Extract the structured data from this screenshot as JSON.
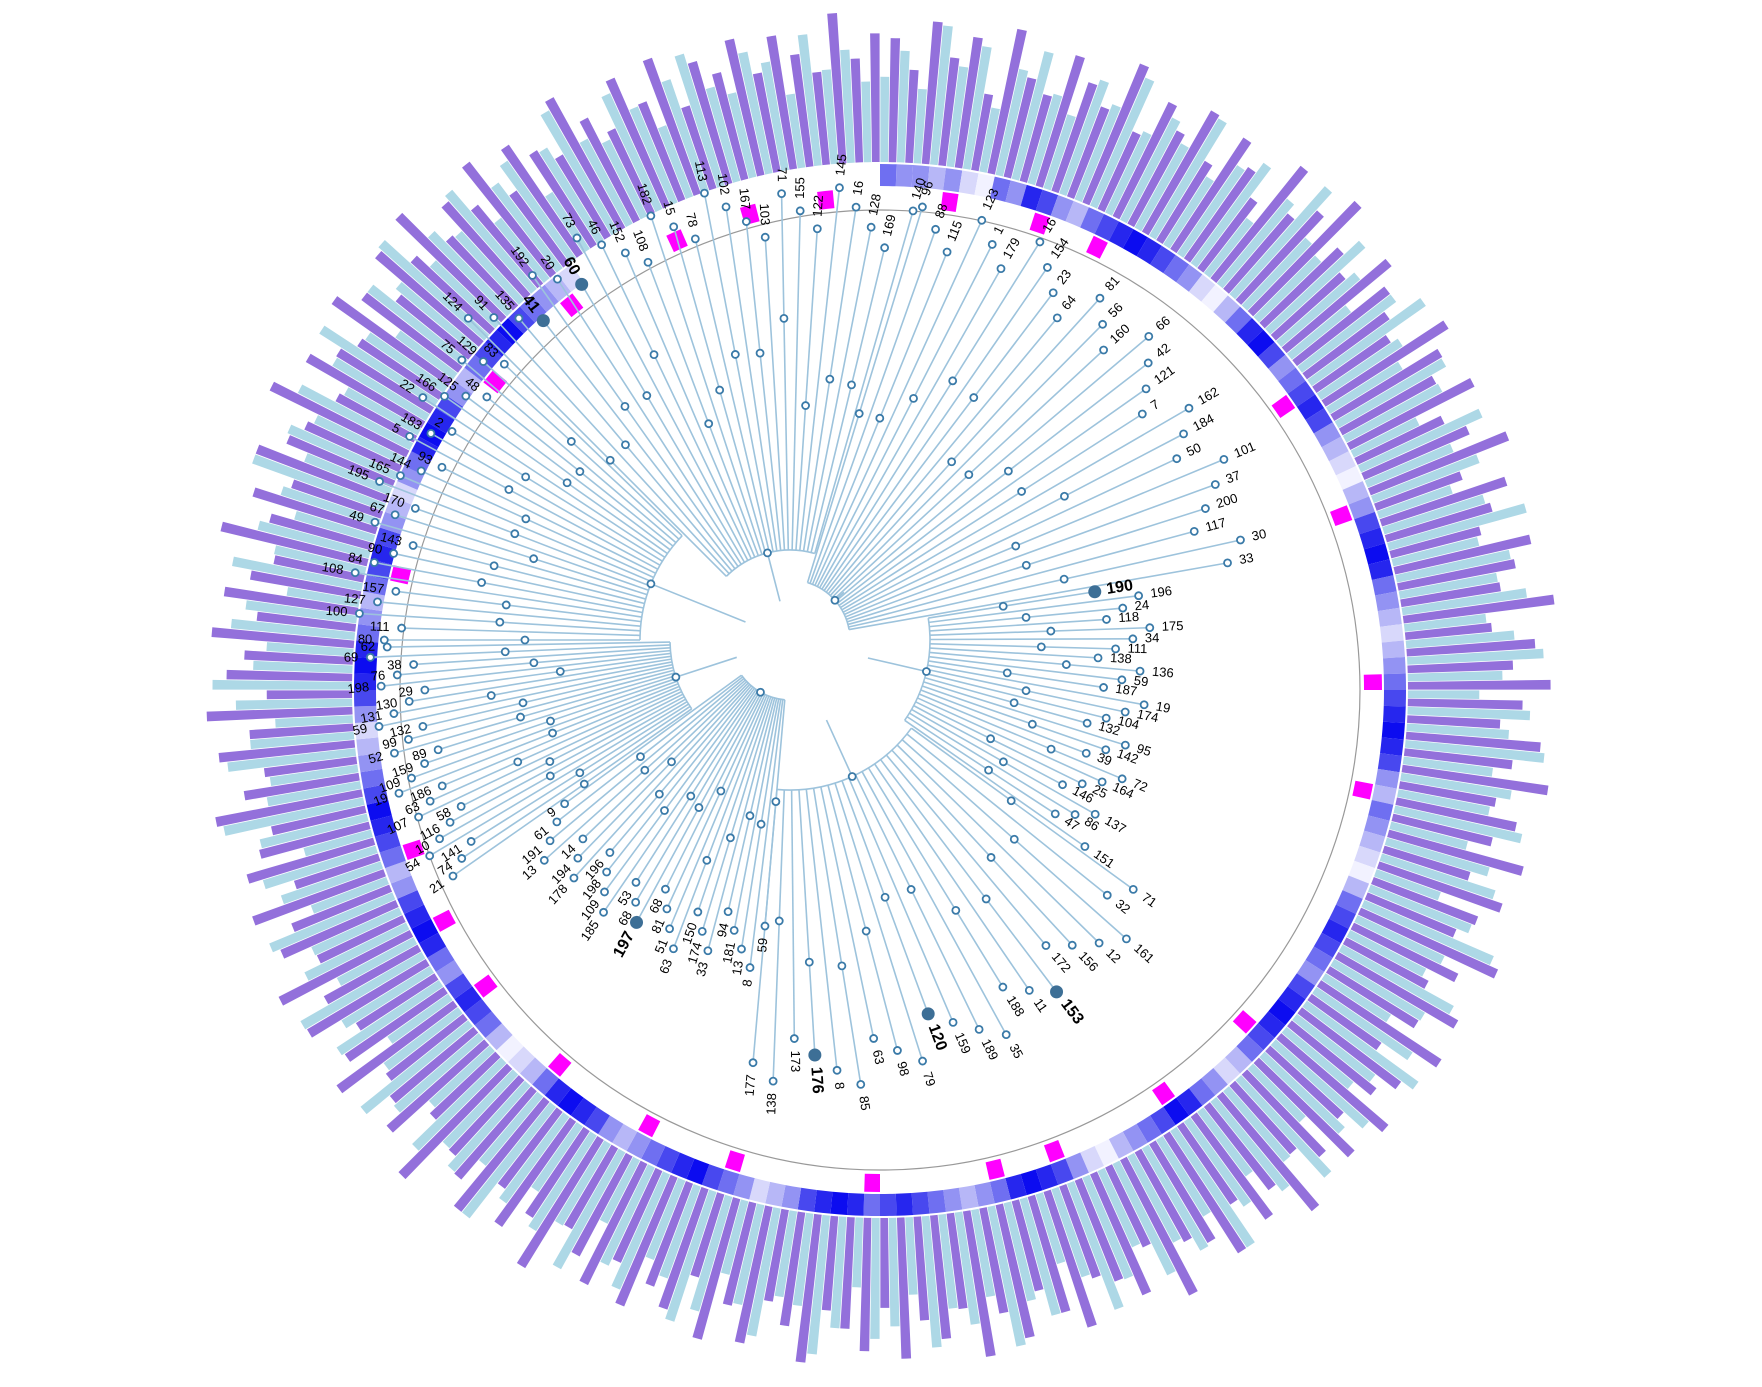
{
  "tree": {
    "branch_color": "#9dc3dc",
    "node_stroke_color": "#3a7aa8",
    "highlight_node_color": "#3d6f96",
    "leaves": [
      "124",
      "91",
      "135",
      "41",
      "192",
      "20",
      "60",
      "73",
      "46",
      "152",
      "108",
      "182",
      "15",
      "78",
      "113",
      "102",
      "167",
      "103",
      "71",
      "155",
      "122",
      "145",
      "16",
      "128",
      "169",
      "140",
      "80",
      "111",
      "100",
      "127",
      "157",
      "108",
      "84",
      "90",
      "143",
      "49",
      "67",
      "170",
      "195",
      "165",
      "144",
      "93",
      "5",
      "183",
      "2",
      "22",
      "166",
      "125",
      "48",
      "75",
      "129",
      "83",
      "21",
      "74",
      "141",
      "54",
      "10",
      "116",
      "58",
      "107",
      "63",
      "186",
      "19",
      "109",
      "159",
      "89",
      "52",
      "99",
      "132",
      "59",
      "131",
      "130",
      "29",
      "198",
      "76",
      "38",
      "69",
      "62",
      "59",
      "8",
      "13",
      "181",
      "94",
      "33",
      "174",
      "150",
      "63",
      "51",
      "81",
      "68",
      "197",
      "68",
      "53",
      "185",
      "109",
      "198",
      "196",
      "178",
      "194",
      "14",
      "13",
      "191",
      "61",
      "9",
      "96",
      "88",
      "115",
      "123",
      "1",
      "179",
      "16",
      "154",
      "23",
      "64",
      "81",
      "56",
      "160",
      "66",
      "42",
      "121",
      "7",
      "162",
      "184",
      "50",
      "101",
      "37",
      "200",
      "117",
      "30",
      "33",
      "190",
      "196",
      "24",
      "118",
      "175",
      "34",
      "111",
      "138",
      "136",
      "59",
      "187",
      "19",
      "174",
      "104",
      "132",
      "95",
      "142",
      "39",
      "72",
      "164",
      "25",
      "146",
      "137",
      "86",
      "47",
      "151",
      "71",
      "32",
      "161",
      "12",
      "156",
      "172",
      "153",
      "11",
      "188",
      "35",
      "189",
      "159",
      "120",
      "79",
      "98",
      "63",
      "85",
      "8",
      "176",
      "173",
      "138",
      "177"
    ],
    "bold_leaves": [
      "91",
      "41",
      "60",
      "103",
      "170",
      "83",
      "52",
      "197",
      "178",
      "66",
      "42",
      "190",
      "175",
      "138",
      "104",
      "132",
      "137",
      "86",
      "153",
      "189",
      "120",
      "176"
    ]
  },
  "rings": {
    "highlight_color": "#ff00ff",
    "heat_palette": [
      "#f2f2ff",
      "#d8d8fb",
      "#b7b7f7",
      "#9393f3",
      "#6f6ff1",
      "#4848ef",
      "#2626ee",
      "#0c0cf0"
    ],
    "bar_colors": [
      "#add8e6",
      "#9370db"
    ],
    "heat_levels": [
      4,
      3,
      3,
      2,
      3,
      1,
      0,
      4,
      3,
      6,
      5,
      3,
      2,
      4,
      5,
      6,
      7,
      6,
      5,
      4,
      3,
      1,
      0,
      2,
      4,
      6,
      7,
      5,
      3,
      4,
      5,
      6,
      5,
      3,
      2,
      1,
      0,
      2,
      3,
      5,
      6,
      7,
      6,
      4,
      3,
      2,
      1,
      2,
      3,
      4,
      5,
      6,
      7,
      6,
      5,
      3,
      2,
      4,
      3,
      2,
      1,
      0,
      2,
      4,
      5,
      6,
      5,
      4,
      3,
      5,
      6,
      7,
      6,
      5,
      4,
      2,
      1,
      3,
      4,
      6,
      7,
      5,
      4,
      3,
      2,
      0,
      1,
      3,
      5,
      6,
      7,
      6,
      4,
      3,
      2,
      3,
      4,
      5,
      6,
      5,
      4,
      6,
      7,
      6,
      5,
      3,
      2,
      1,
      3,
      4,
      5,
      7,
      6,
      5,
      4,
      3,
      2,
      3,
      5,
      6,
      7,
      6,
      4,
      2,
      1,
      0,
      2,
      4,
      5,
      6,
      5,
      3,
      4,
      6,
      7,
      6,
      5,
      3,
      2,
      4,
      5,
      6,
      7,
      5,
      4,
      3,
      2,
      1,
      3,
      5,
      6,
      7,
      6,
      4,
      3,
      2,
      4,
      5,
      6,
      5,
      3,
      2,
      1,
      3,
      4,
      6,
      7,
      6,
      5,
      3,
      2,
      4,
      5,
      6,
      7,
      5,
      4,
      3,
      2,
      1
    ],
    "highlight_positions": [
      4,
      10,
      14,
      30,
      38,
      49,
      56,
      73,
      80,
      88,
      92,
      100,
      109,
      115,
      122,
      129,
      134,
      139,
      157,
      171,
      178,
      186,
      191,
      196
    ],
    "bar_lengths_a": [
      0.55,
      0.72,
      0.48,
      0.9,
      0.65,
      0.8,
      0.42,
      0.7,
      0.85,
      0.6,
      0.5,
      0.78,
      0.66,
      0.9,
      0.58,
      0.74,
      0.62,
      0.88,
      0.52,
      0.69,
      0.8,
      0.45,
      0.71,
      0.93,
      0.6,
      0.56,
      0.83,
      0.67,
      0.49,
      0.76,
      0.9,
      0.63,
      0.55,
      0.8,
      0.7,
      0.47,
      0.86,
      0.6,
      0.73,
      0.5,
      0.68,
      0.92,
      0.57,
      0.75,
      0.64,
      0.81,
      0.53,
      0.7,
      0.88,
      0.61,
      0.46,
      0.79,
      0.66,
      0.9,
      0.58,
      0.72,
      0.6,
      0.84,
      0.51,
      0.69,
      0.77,
      0.44,
      0.7,
      0.91,
      0.62,
      0.55,
      0.82,
      0.68,
      0.5,
      0.75,
      0.89,
      0.64,
      0.56,
      0.8,
      0.71,
      0.48,
      0.85,
      0.6,
      0.74,
      0.52,
      0.67,
      0.9,
      0.58,
      0.76,
      0.63,
      0.8,
      0.54,
      0.71,
      0.87,
      0.6,
      0.47,
      0.78,
      0.65,
      0.92,
      0.57,
      0.73,
      0.61,
      0.85,
      0.5,
      0.7,
      0.78,
      0.45,
      0.72,
      0.9,
      0.6,
      0.56,
      0.84,
      0.66,
      0.49,
      0.77,
      0.88,
      0.63,
      0.55,
      0.81,
      0.7,
      0.46,
      0.86,
      0.61,
      0.73,
      0.51,
      0.69,
      0.91,
      0.58,
      0.74,
      0.65,
      0.8,
      0.53,
      0.72,
      0.89,
      0.6,
      0.48,
      0.79,
      0.67,
      0.9,
      0.56,
      0.73,
      0.62,
      0.86,
      0.52,
      0.68,
      0.76,
      0.45,
      0.71,
      0.92,
      0.61,
      0.57,
      0.83,
      0.67,
      0.5,
      0.75,
      0.9,
      0.64,
      0.56,
      0.8,
      0.72,
      0.47,
      0.85,
      0.6,
      0.74,
      0.53,
      0.66,
      0.9,
      0.59,
      0.76,
      0.63,
      0.81,
      0.54,
      0.7,
      0.88,
      0.61,
      0.46,
      0.78,
      0.65,
      0.91,
      0.58,
      0.72,
      0.6,
      0.84,
      0.5,
      0.69,
      0.77,
      0.44,
      0.7,
      0.9,
      0.62,
      0.55,
      0.82,
      0.67,
      0.49,
      0.76,
      0.89,
      0.63,
      0.56,
      0.8,
      0.71,
      0.48,
      0.85,
      0.61,
      0.73,
      0.52
    ],
    "bar_lengths_b": [
      0.8,
      0.6,
      0.92,
      0.7,
      0.85,
      0.5,
      0.95,
      0.66,
      0.58,
      0.88,
      0.74,
      0.62,
      0.97,
      0.55,
      0.82,
      0.68,
      0.9,
      0.6,
      0.86,
      0.72,
      0.57,
      0.93,
      0.64,
      0.78,
      0.99,
      0.7,
      0.6,
      0.88,
      0.76,
      0.66,
      0.58,
      0.94,
      0.81,
      0.69,
      0.9,
      0.62,
      0.74,
      0.96,
      0.59,
      0.85,
      0.71,
      0.6,
      0.9,
      0.77,
      0.65,
      0.98,
      0.56,
      0.83,
      0.68,
      0.92,
      0.74,
      0.6,
      0.87,
      0.7,
      0.95,
      0.63,
      0.79,
      0.66,
      0.9,
      0.58,
      0.84,
      0.72,
      0.62,
      0.97,
      0.75,
      0.6,
      0.89,
      0.67,
      0.93,
      0.55,
      0.8,
      0.7,
      0.91,
      0.64,
      0.86,
      0.73,
      0.59,
      0.96,
      0.68,
      0.82,
      0.61,
      0.9,
      0.74,
      0.66,
      0.98,
      0.57,
      0.85,
      0.7,
      0.63,
      0.92,
      0.78,
      0.6,
      0.88,
      0.69,
      0.95,
      0.62,
      0.8,
      0.67,
      0.91,
      0.58,
      0.86,
      0.72,
      0.61,
      0.96,
      0.74,
      0.6,
      0.9,
      0.68,
      0.94,
      0.56,
      0.82,
      0.71,
      0.9,
      0.65,
      0.87,
      0.73,
      0.6,
      0.97,
      0.67,
      0.83,
      0.62,
      0.91,
      0.75,
      0.66,
      0.99,
      0.58,
      0.84,
      0.7,
      0.63,
      0.93,
      0.77,
      0.6,
      0.89,
      0.69,
      0.95,
      0.61,
      0.81,
      0.68,
      0.9,
      0.57,
      0.85,
      0.73,
      0.62,
      0.96,
      0.75,
      0.6,
      0.88,
      0.67,
      0.94,
      0.55,
      0.81,
      0.7,
      0.92,
      0.64,
      0.87,
      0.72,
      0.59,
      0.97,
      0.68,
      0.83,
      0.61,
      0.9,
      0.74,
      0.67,
      0.98,
      0.57,
      0.86,
      0.71,
      0.63,
      0.92,
      0.78,
      0.6,
      0.88,
      0.69,
      0.95,
      0.62,
      0.8,
      0.66,
      0.91,
      0.58,
      0.85,
      0.72,
      0.61,
      0.96,
      0.74,
      0.6,
      0.9,
      0.68,
      0.93,
      0.56,
      0.82,
      0.71,
      0.9,
      0.65,
      0.87,
      0.73,
      0.6,
      0.97,
      0.67,
      0.83
    ]
  }
}
